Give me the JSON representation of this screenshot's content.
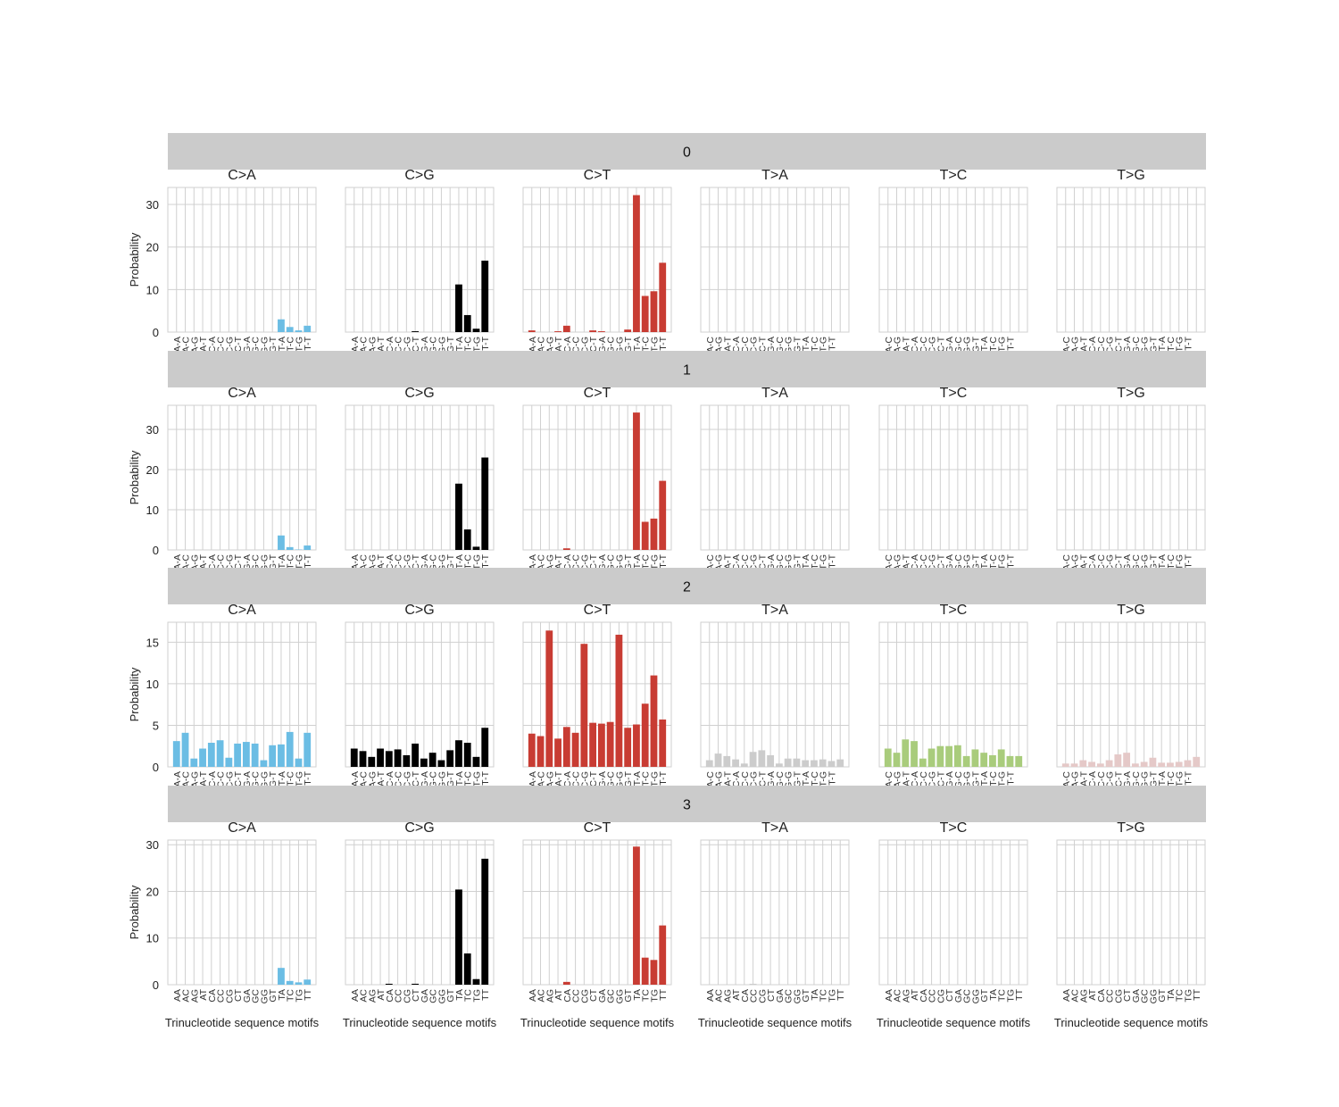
{
  "chart_data": {
    "type": "bar",
    "layout": "facet-grid 4 rows x 6 columns",
    "ylabel": "Probability",
    "xlabel": "Trinucleotide sequence motifs",
    "grid": true,
    "mutation_types": [
      "C>A",
      "C>G",
      "C>T",
      "T>A",
      "T>C",
      "T>G"
    ],
    "colors": {
      "C>A": "#6bbde4",
      "C>G": "#000000",
      "C>T": "#c83c33",
      "T>A": "#cccccc",
      "T>C": "#a9cc7c",
      "T>G": "#e5c9c8"
    },
    "motif_labels_c_partial": [
      "A-A",
      "A-C",
      "A-G",
      "A-T",
      "C-A",
      "C-C",
      "C-G",
      "C-T",
      "G-A",
      "G-C",
      "G-G",
      "G-T",
      "T-A",
      "T-C",
      "T-G",
      "T-T"
    ],
    "motif_labels_t_partial": [
      "A-C",
      "A-G",
      "A-T",
      "C-A",
      "C-C",
      "C-G",
      "C-T",
      "G-A",
      "G-C",
      "G-G",
      "G-T",
      "T-A",
      "T-C",
      "T-G",
      "T-T"
    ],
    "motif_labels_full": [
      "AA",
      "AC",
      "AG",
      "AT",
      "CA",
      "CC",
      "CG",
      "CT",
      "GA",
      "GC",
      "GG",
      "GT",
      "TA",
      "TC",
      "TG",
      "TT"
    ],
    "rows": [
      {
        "label": "0",
        "ylim": [
          0,
          34
        ],
        "yticks": [
          0,
          10,
          20,
          30
        ],
        "values": {
          "C>A": [
            0,
            0,
            0,
            0,
            0,
            0,
            0,
            0,
            0,
            0,
            0,
            0,
            3.0,
            1.2,
            0.4,
            1.5
          ],
          "C>G": [
            0,
            0,
            0,
            0,
            0,
            0,
            0,
            0.2,
            0,
            0,
            0,
            0,
            11.2,
            4.0,
            0.8,
            16.8
          ],
          "C>T": [
            0.4,
            0,
            0,
            0.2,
            1.5,
            0,
            0,
            0.4,
            0.2,
            0,
            0,
            0.6,
            32.2,
            8.5,
            9.6,
            16.3
          ],
          "T>A": [
            0,
            0,
            0,
            0,
            0,
            0,
            0,
            0,
            0,
            0,
            0,
            0,
            0,
            0,
            0,
            0
          ],
          "T>C": [
            0,
            0,
            0,
            0,
            0,
            0,
            0,
            0,
            0,
            0,
            0,
            0,
            0,
            0,
            0,
            0
          ],
          "T>G": [
            0,
            0,
            0,
            0,
            0,
            0,
            0,
            0,
            0,
            0,
            0,
            0,
            0,
            0,
            0,
            0
          ]
        }
      },
      {
        "label": "1",
        "ylim": [
          0,
          36
        ],
        "yticks": [
          0,
          10,
          20,
          30
        ],
        "values": {
          "C>A": [
            0,
            0,
            0,
            0,
            0,
            0,
            0,
            0,
            0,
            0,
            0,
            0,
            3.6,
            0.7,
            0.1,
            1.1
          ],
          "C>G": [
            0,
            0,
            0,
            0,
            0,
            0,
            0,
            0,
            0,
            0,
            0,
            0,
            16.5,
            5.1,
            0.8,
            23.0
          ],
          "C>T": [
            0,
            0,
            0,
            0,
            0.4,
            0,
            0,
            0,
            0,
            0,
            0,
            0,
            34.2,
            7.0,
            7.8,
            17.2
          ],
          "T>A": [
            0,
            0,
            0,
            0,
            0,
            0,
            0,
            0,
            0,
            0,
            0,
            0,
            0,
            0,
            0,
            0
          ],
          "T>C": [
            0,
            0,
            0,
            0,
            0,
            0,
            0,
            0,
            0,
            0,
            0,
            0,
            0,
            0,
            0,
            0
          ],
          "T>G": [
            0,
            0,
            0,
            0,
            0,
            0,
            0,
            0,
            0,
            0,
            0,
            0,
            0,
            0,
            0,
            0
          ]
        }
      },
      {
        "label": "2",
        "ylim": [
          0,
          17.4
        ],
        "yticks": [
          0,
          5,
          10,
          15
        ],
        "values": {
          "C>A": [
            3.1,
            4.1,
            1.0,
            2.2,
            2.9,
            3.2,
            1.1,
            2.8,
            3.0,
            2.8,
            0.8,
            2.6,
            2.7,
            4.2,
            1.0,
            4.1
          ],
          "C>G": [
            2.2,
            1.9,
            1.2,
            2.2,
            1.9,
            2.1,
            1.4,
            2.8,
            1.0,
            1.7,
            0.8,
            2.0,
            3.2,
            2.9,
            1.2,
            4.7
          ],
          "C>T": [
            4.0,
            3.7,
            16.4,
            3.4,
            4.8,
            4.1,
            14.8,
            5.3,
            5.2,
            5.4,
            15.9,
            4.7,
            5.1,
            7.6,
            11.0,
            5.7
          ],
          "T>A": [
            0.8,
            1.6,
            1.3,
            0.9,
            0.4,
            1.8,
            2.0,
            1.4,
            0.4,
            1.0,
            1.0,
            0.8,
            0.8,
            0.9,
            0.7,
            0.9
          ],
          "T>C": [
            2.2,
            1.7,
            3.3,
            3.1,
            1.0,
            2.2,
            2.5,
            2.5,
            2.6,
            1.3,
            2.1,
            1.7,
            1.4,
            2.1,
            1.3,
            1.3
          ],
          "T>G": [
            0.4,
            0.4,
            0.8,
            0.6,
            0.4,
            0.8,
            1.5,
            1.7,
            0.4,
            0.6,
            1.1,
            0.5,
            0.5,
            0.6,
            0.8,
            1.2
          ]
        }
      },
      {
        "label": "3",
        "ylim": [
          0,
          31
        ],
        "yticks": [
          0,
          10,
          20,
          30
        ],
        "values": {
          "C>A": [
            0,
            0,
            0,
            0,
            0,
            0,
            0,
            0,
            0,
            0,
            0,
            0,
            3.6,
            0.8,
            0.5,
            1.1
          ],
          "C>G": [
            0,
            0,
            0,
            0,
            0.2,
            0,
            0,
            0.2,
            0,
            0,
            0,
            0,
            20.4,
            6.7,
            1.2,
            27.0
          ],
          "C>T": [
            0,
            0,
            0,
            0,
            0.6,
            0,
            0,
            0,
            0,
            0,
            0,
            0,
            29.6,
            5.8,
            5.3,
            12.7
          ],
          "T>A": [
            0,
            0,
            0,
            0,
            0,
            0.2,
            0,
            0,
            0,
            0,
            0,
            0,
            0,
            0,
            0,
            0
          ],
          "T>C": [
            0,
            0,
            0,
            0,
            0,
            0,
            0,
            0,
            0,
            0,
            0,
            0,
            0,
            0,
            0,
            0
          ],
          "T>G": [
            0,
            0,
            0,
            0,
            0,
            0,
            0,
            0,
            0,
            0,
            0,
            0,
            0,
            0,
            0,
            0
          ]
        }
      }
    ]
  }
}
